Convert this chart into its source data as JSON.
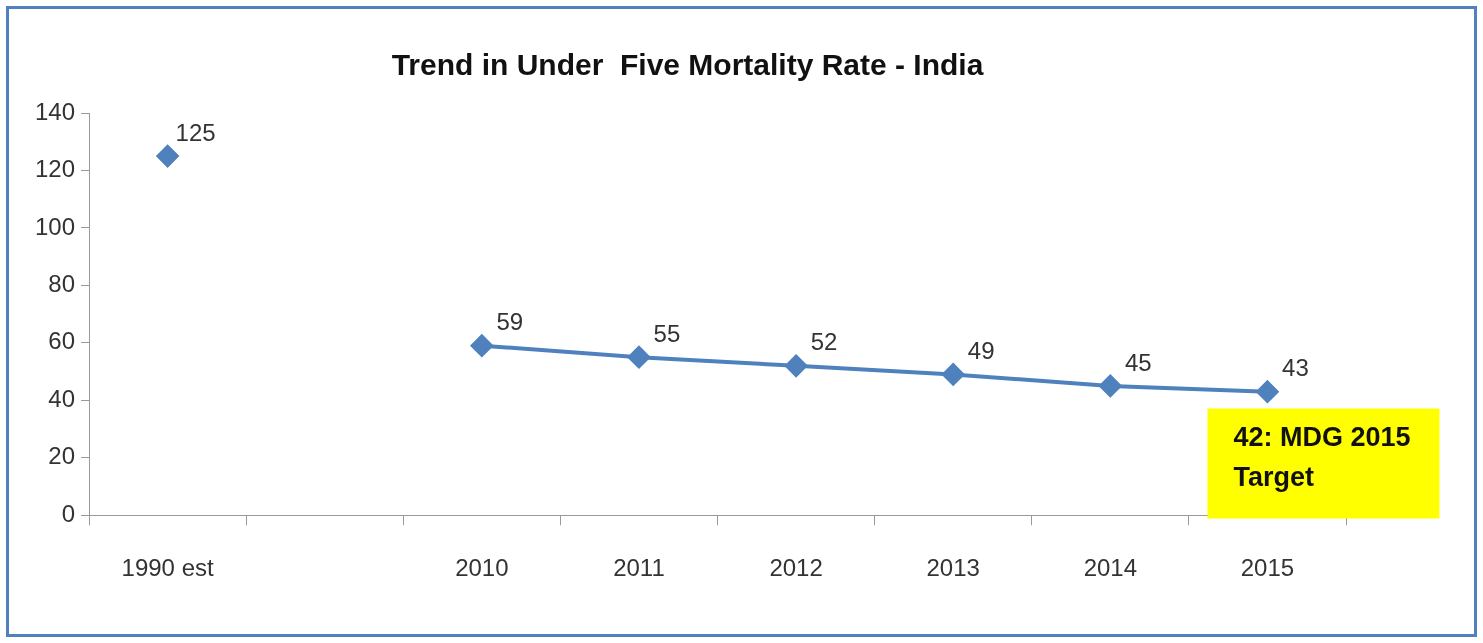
{
  "chart_data": {
    "type": "line",
    "title": "Trend in Under  Five Mortality Rate - India",
    "categories": [
      "1990 est",
      null,
      "2010",
      "2011",
      "2012",
      "2013",
      "2014",
      "2015"
    ],
    "series": [
      {
        "color": "#4f81bd",
        "values": [
          125,
          null,
          59,
          55,
          52,
          49,
          45,
          43
        ]
      }
    ],
    "ylim": [
      0,
      140
    ],
    "yticks": [
      0,
      20,
      40,
      60,
      80,
      100,
      120,
      140
    ],
    "marker": "diamond",
    "line_style": "solid",
    "data_labels": true,
    "legend": false,
    "annotations": [
      {
        "text": "42: MDG 2015 Target",
        "x": "2015",
        "y": 42
      }
    ]
  }
}
